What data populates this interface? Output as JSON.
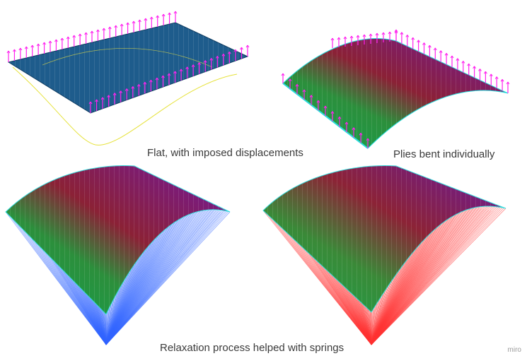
{
  "captions": {
    "flat": "Flat, with imposed displacements",
    "plies": "Plies bent individually",
    "relaxation": "Relaxation process helped with springs"
  },
  "watermark": "miro",
  "colors": {
    "flat_mesh": "#1f5f8a",
    "arrows": "#ff22ee",
    "mesh_edge": "#33dddd",
    "springs_blue": "#3366ff",
    "springs_red": "#ff3333",
    "gradient": [
      "#14a050",
      "#2e9a40",
      "#8a2a3a",
      "#7a1a6a",
      "#6a1aa0"
    ]
  }
}
